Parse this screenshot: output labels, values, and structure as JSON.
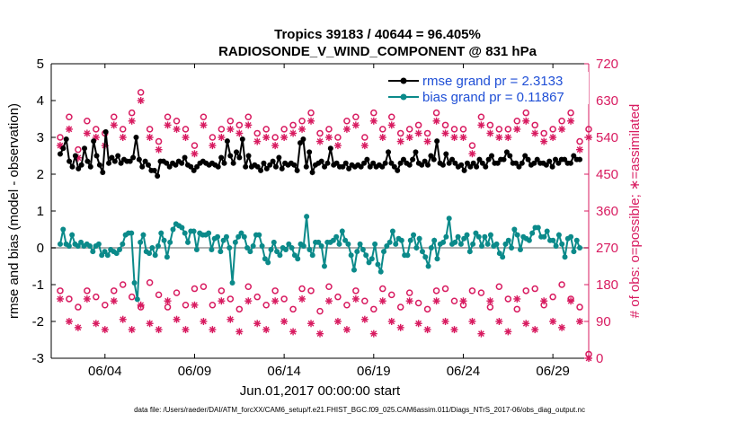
{
  "chart_data": {
    "type": "line",
    "title_line1": "Tropics 39183 / 40644 = 96.405%",
    "title_line2": "RADIOSONDE_V_WIND_COMPONENT @ 831 hPa",
    "xlabel": "Jun.01,2017 00:00:00 start",
    "ylabel_left": "rmse and bias (model - observation)",
    "ylabel_right": "# of obs: o=possible; ∗=assimilated",
    "footer": "data file: /Users/raeder/DAI/ATM_forcXX/CAM6_setup/f.e21.FHIST_BGC.f09_025.CAM6assim.011/Diags_NTrS_2017-06/obs_diag_output.nc",
    "x_range": [
      0.5,
      30.5
    ],
    "ylim_left": [
      -3,
      5
    ],
    "ylim_right": [
      0,
      720
    ],
    "x_ticks": [
      {
        "value": 3.5,
        "label": "06/04"
      },
      {
        "value": 8.5,
        "label": "06/09"
      },
      {
        "value": 13.5,
        "label": "06/14"
      },
      {
        "value": 18.5,
        "label": "06/19"
      },
      {
        "value": 23.5,
        "label": "06/24"
      },
      {
        "value": 28.5,
        "label": "06/29"
      }
    ],
    "y_ticks_left": [
      "5",
      "4",
      "3",
      "2",
      "1",
      "0",
      "-1",
      "-2",
      "-3"
    ],
    "y_ticks_right": [
      "720",
      "630",
      "540",
      "450",
      "360",
      "270",
      "180",
      "90",
      "0"
    ],
    "legend": [
      {
        "name": "rmse grand pr = 2.3133",
        "color": "#000000"
      },
      {
        "name": "bias grand pr = 0.11867",
        "color": "#0b8a8a"
      }
    ],
    "colors": {
      "rmse": "#000000",
      "bias": "#0b8a8a",
      "obs": "#d81b60",
      "zero_line": "#b0b0b0"
    },
    "rmse": [
      2.55,
      2.7,
      2.95,
      2.35,
      2.2,
      2.5,
      2.15,
      2.25,
      2.7,
      2.35,
      2.2,
      2.9,
      2.5,
      2.25,
      2.05,
      3.15,
      2.3,
      2.45,
      2.35,
      2.5,
      2.3,
      2.4,
      2.35,
      2.35,
      2.45,
      3.0,
      2.4,
      2.2,
      2.35,
      2.25,
      2.1,
      2.1,
      1.95,
      2.35,
      2.35,
      2.3,
      2.2,
      2.3,
      2.25,
      2.35,
      2.3,
      2.45,
      2.25,
      2.2,
      2.1,
      2.2,
      2.3,
      2.35,
      2.3,
      2.25,
      2.3,
      2.25,
      2.2,
      2.45,
      2.3,
      2.9,
      2.5,
      2.3,
      2.6,
      2.45,
      2.95,
      2.2,
      2.5,
      2.2,
      2.25,
      2.2,
      2.1,
      2.3,
      2.15,
      2.25,
      2.35,
      2.2,
      2.45,
      2.15,
      2.3,
      2.25,
      2.3,
      2.25,
      2.1,
      2.85,
      2.95,
      2.2,
      2.6,
      2.05,
      2.25,
      2.3,
      2.35,
      2.2,
      2.3,
      2.7,
      2.25,
      2.3,
      2.2,
      2.2,
      2.3,
      2.15,
      2.25,
      2.2,
      2.25,
      2.2,
      2.3,
      2.4,
      2.2,
      2.3,
      2.2,
      2.25,
      2.2,
      2.3,
      2.6,
      2.3,
      2.2,
      2.1,
      2.3,
      2.4,
      2.3,
      2.25,
      2.4,
      2.6,
      2.3,
      2.25,
      2.35,
      2.25,
      2.5,
      2.4,
      2.9,
      2.3,
      2.25,
      2.55,
      2.3,
      2.4,
      2.3,
      2.2,
      2.25,
      2.1,
      2.3,
      2.2,
      2.3,
      2.2,
      2.4,
      2.3,
      2.2,
      2.4,
      2.5,
      2.3,
      2.3,
      2.4,
      2.4,
      2.6,
      2.5,
      2.3,
      2.3,
      2.2,
      2.3,
      2.5,
      2.4,
      2.25,
      2.3,
      2.4,
      2.3,
      2.3,
      2.25,
      2.35,
      2.2,
      2.4,
      2.3,
      2.4,
      2.4,
      2.3,
      2.3,
      2.5,
      2.4,
      2.4
    ],
    "bias": [
      0.1,
      0.5,
      0.1,
      0.05,
      0.35,
      0.1,
      0.05,
      0.15,
      0.05,
      0.1,
      0.05,
      -0.1,
      0.05,
      0.1,
      -0.2,
      -0.1,
      -0.2,
      -0.05,
      -0.1,
      -0.15,
      -0.05,
      0.1,
      0.35,
      0.4,
      0.4,
      -0.95,
      -1.4,
      0.15,
      0.35,
      -0.1,
      -0.15,
      0.0,
      -0.2,
      0.05,
      0.4,
      0.2,
      -0.25,
      0.15,
      0.5,
      0.65,
      0.6,
      0.55,
      0.4,
      0.15,
      0.45,
      0.45,
      -0.05,
      0.4,
      0.35,
      0.35,
      0.4,
      -0.05,
      0.25,
      0.3,
      -0.1,
      0.2,
      0.3,
      0.0,
      -0.95,
      0.15,
      0.3,
      0.4,
      0.3,
      0.0,
      -0.1,
      0.05,
      0.35,
      0.35,
      0.05,
      -0.3,
      -0.4,
      -0.05,
      0.15,
      -0.1,
      -0.2,
      0.0,
      -0.05,
      0.1,
      0.0,
      -0.2,
      -0.3,
      0.1,
      0.05,
      0.85,
      -0.05,
      -0.2,
      0.15,
      0.15,
      0.05,
      -0.5,
      0.15,
      0.15,
      0.2,
      0.3,
      0.1,
      0.45,
      0.2,
      0.1,
      -0.2,
      -0.6,
      -0.1,
      0.1,
      -0.05,
      -0.2,
      -0.4,
      -0.3,
      0.1,
      -0.45,
      -0.65,
      -0.1,
      0.05,
      0.15,
      0.45,
      0.1,
      0.25,
      0.2,
      -0.2,
      -0.2,
      0.2,
      0.35,
      0.0,
      0.25,
      -0.1,
      -0.25,
      -0.5,
      0.0,
      0.2,
      -0.3,
      0.1,
      0.15,
      0.3,
      0.8,
      0.1,
      0.15,
      0.3,
      0.1,
      0.25,
      0.35,
      -0.1,
      0.1,
      0.4,
      0.3,
      0.05,
      0.3,
      0.1,
      0.35,
      0.05,
      0.1,
      -0.15,
      -0.25,
      0.1,
      0.2,
      0.0,
      0.5,
      0.35,
      -0.05,
      0.3,
      0.25,
      0.2,
      0.4,
      0.55,
      0.55,
      0.3,
      0.3,
      0.45,
      0.2,
      0.2,
      0.05,
      0.35,
      0.1,
      -0.25,
      0.25,
      0.3,
      -0.1,
      0.2,
      0.0
    ],
    "obs_days": [
      1,
      1.5,
      2,
      2.5,
      3,
      3.5,
      4,
      4.5,
      5,
      5.5,
      6,
      6.5,
      7,
      7.5,
      8,
      8.5,
      9,
      9.5,
      10,
      10.5,
      11,
      11.5,
      12,
      12.5,
      13,
      13.5,
      14,
      14.5,
      15,
      15.5,
      16,
      16.5,
      17,
      17.5,
      18,
      18.5,
      19,
      19.5,
      20,
      20.5,
      21,
      21.5,
      22,
      22.5,
      23,
      23.5,
      24,
      24.5,
      25,
      25.5,
      26,
      26.5,
      27,
      27.5,
      28,
      28.5,
      29,
      29.5,
      30,
      30.5
    ],
    "obs_possible_high": [
      540,
      590,
      510,
      580,
      560,
      550,
      590,
      560,
      600,
      650,
      560,
      530,
      590,
      580,
      560,
      520,
      590,
      540,
      560,
      580,
      570,
      590,
      550,
      560,
      540,
      560,
      570,
      580,
      600,
      550,
      560,
      540,
      580,
      590,
      540,
      600,
      560,
      590,
      550,
      560,
      570,
      550,
      600,
      570,
      560,
      560,
      520,
      590,
      570,
      560,
      560,
      580,
      600,
      570,
      550,
      560,
      580,
      600,
      530,
      560
    ],
    "obs_assimilated_high": [
      520,
      560,
      490,
      550,
      540,
      520,
      570,
      540,
      580,
      630,
      540,
      510,
      570,
      560,
      540,
      500,
      570,
      520,
      540,
      560,
      550,
      570,
      530,
      540,
      520,
      540,
      550,
      560,
      580,
      530,
      540,
      520,
      560,
      570,
      520,
      580,
      540,
      570,
      530,
      540,
      550,
      530,
      580,
      550,
      540,
      540,
      500,
      570,
      550,
      540,
      540,
      560,
      580,
      550,
      530,
      540,
      560,
      580,
      510,
      540
    ],
    "obs_possible_low": [
      165,
      145,
      125,
      165,
      150,
      130,
      165,
      180,
      150,
      125,
      185,
      155,
      125,
      160,
      130,
      170,
      175,
      130,
      165,
      145,
      120,
      175,
      150,
      130,
      165,
      145,
      120,
      170,
      165,
      115,
      175,
      150,
      130,
      165,
      140,
      120,
      170,
      155,
      125,
      160,
      135,
      120,
      165,
      170,
      140,
      130,
      165,
      160,
      125,
      175,
      145,
      120,
      165,
      170,
      130,
      150,
      180,
      145,
      125,
      10
    ],
    "obs_assimilated_low": [
      145,
      90,
      75,
      145,
      85,
      70,
      140,
      95,
      70,
      130,
      85,
      70,
      140,
      95,
      70,
      130,
      90,
      70,
      140,
      95,
      65,
      140,
      85,
      70,
      140,
      90,
      65,
      145,
      85,
      60,
      140,
      90,
      70,
      145,
      95,
      60,
      140,
      90,
      75,
      140,
      85,
      70,
      140,
      90,
      70,
      140,
      90,
      60,
      140,
      90,
      65,
      145,
      85,
      70,
      140,
      90,
      75,
      140,
      90,
      0
    ]
  }
}
